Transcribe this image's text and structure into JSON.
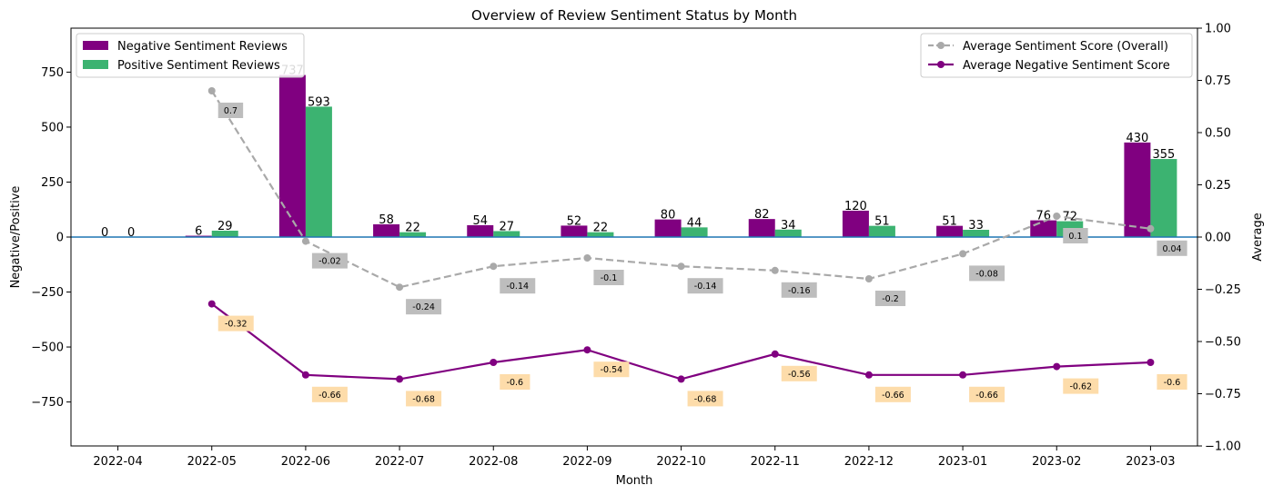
{
  "chart_data": {
    "type": "bar",
    "title": "Overview of Review Sentiment Status by Month",
    "xlabel": "Month",
    "ylabel": "Negative/Positive",
    "y2label": "Average",
    "ylim": [
      -950,
      950
    ],
    "y2lim": [
      -1.0,
      1.0
    ],
    "yticks": [
      -750,
      -500,
      -250,
      0,
      250,
      500,
      750
    ],
    "y2ticks": [
      -1.0,
      -0.75,
      -0.5,
      -0.25,
      0.0,
      0.25,
      0.5,
      0.75,
      1.0
    ],
    "categories": [
      "2022-04",
      "2022-05",
      "2022-06",
      "2022-07",
      "2022-08",
      "2022-09",
      "2022-10",
      "2022-11",
      "2022-12",
      "2023-01",
      "2023-02",
      "2023-03"
    ],
    "bar_series": [
      {
        "name": "Negative Sentiment Reviews",
        "color": "#800080",
        "values": [
          0,
          6,
          737,
          58,
          54,
          52,
          80,
          82,
          120,
          51,
          76,
          430
        ]
      },
      {
        "name": "Positive Sentiment Reviews",
        "color": "#3cb371",
        "values": [
          0,
          29,
          593,
          22,
          27,
          22,
          44,
          34,
          51,
          33,
          72,
          355
        ]
      }
    ],
    "line_series": [
      {
        "name": "Average Sentiment Score (Overall)",
        "color": "#a9a9a9",
        "dashed": true,
        "label_bg": "#bdbdbd",
        "values": [
          null,
          0.7,
          -0.02,
          -0.24,
          -0.14,
          -0.1,
          -0.14,
          -0.16,
          -0.2,
          -0.08,
          0.1,
          0.04
        ]
      },
      {
        "name": "Average Negative Sentiment Score",
        "color": "#800080",
        "dashed": false,
        "label_bg": "#fddcaa",
        "values": [
          null,
          -0.32,
          -0.66,
          -0.68,
          -0.6,
          -0.54,
          -0.68,
          -0.56,
          -0.66,
          -0.66,
          -0.62,
          -0.6
        ]
      }
    ],
    "zero_line_color": "#1f77b4",
    "legend_left": "upper-left",
    "legend_right": "upper-right"
  }
}
